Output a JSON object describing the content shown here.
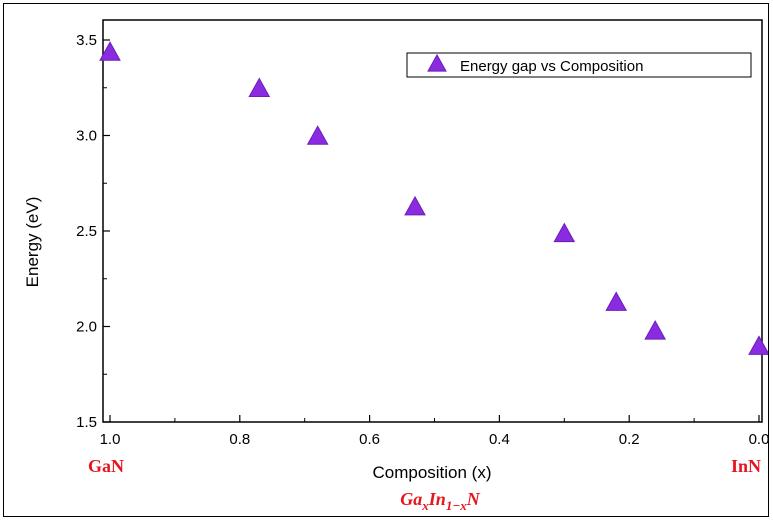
{
  "colors": {
    "marker": "#8a2be2",
    "marker_stroke": "#6a1fb8",
    "accent_red": "#e8141c",
    "axis": "#000000"
  },
  "chart_data": {
    "type": "scatter",
    "title": "",
    "xlabel": "Composition (x)",
    "ylabel": "Energy (eV)",
    "xlim": [
      1.0,
      0.0
    ],
    "ylim": [
      1.5,
      3.5
    ],
    "x_reversed": true,
    "x_ticks": [
      "1.0",
      "0.8",
      "0.6",
      "0.4",
      "0.2",
      "0.0"
    ],
    "y_ticks": [
      "1.5",
      "2.0",
      "2.5",
      "3.0",
      "3.5"
    ],
    "grid": false,
    "legend_position": "top-right",
    "series": [
      {
        "name": "Energy gap vs Composition",
        "marker": "triangle-up",
        "x": [
          1.0,
          0.77,
          0.68,
          0.53,
          0.3,
          0.22,
          0.16,
          0.0
        ],
        "y": [
          3.43,
          3.24,
          2.99,
          2.62,
          2.48,
          2.12,
          1.97,
          1.89
        ]
      }
    ],
    "annotations": {
      "left_end": "GaN",
      "right_end": "InN",
      "formula": {
        "main1": "Ga",
        "sub1": "x",
        "main2": "In",
        "sub2": "1−x",
        "main3": "N"
      }
    }
  }
}
